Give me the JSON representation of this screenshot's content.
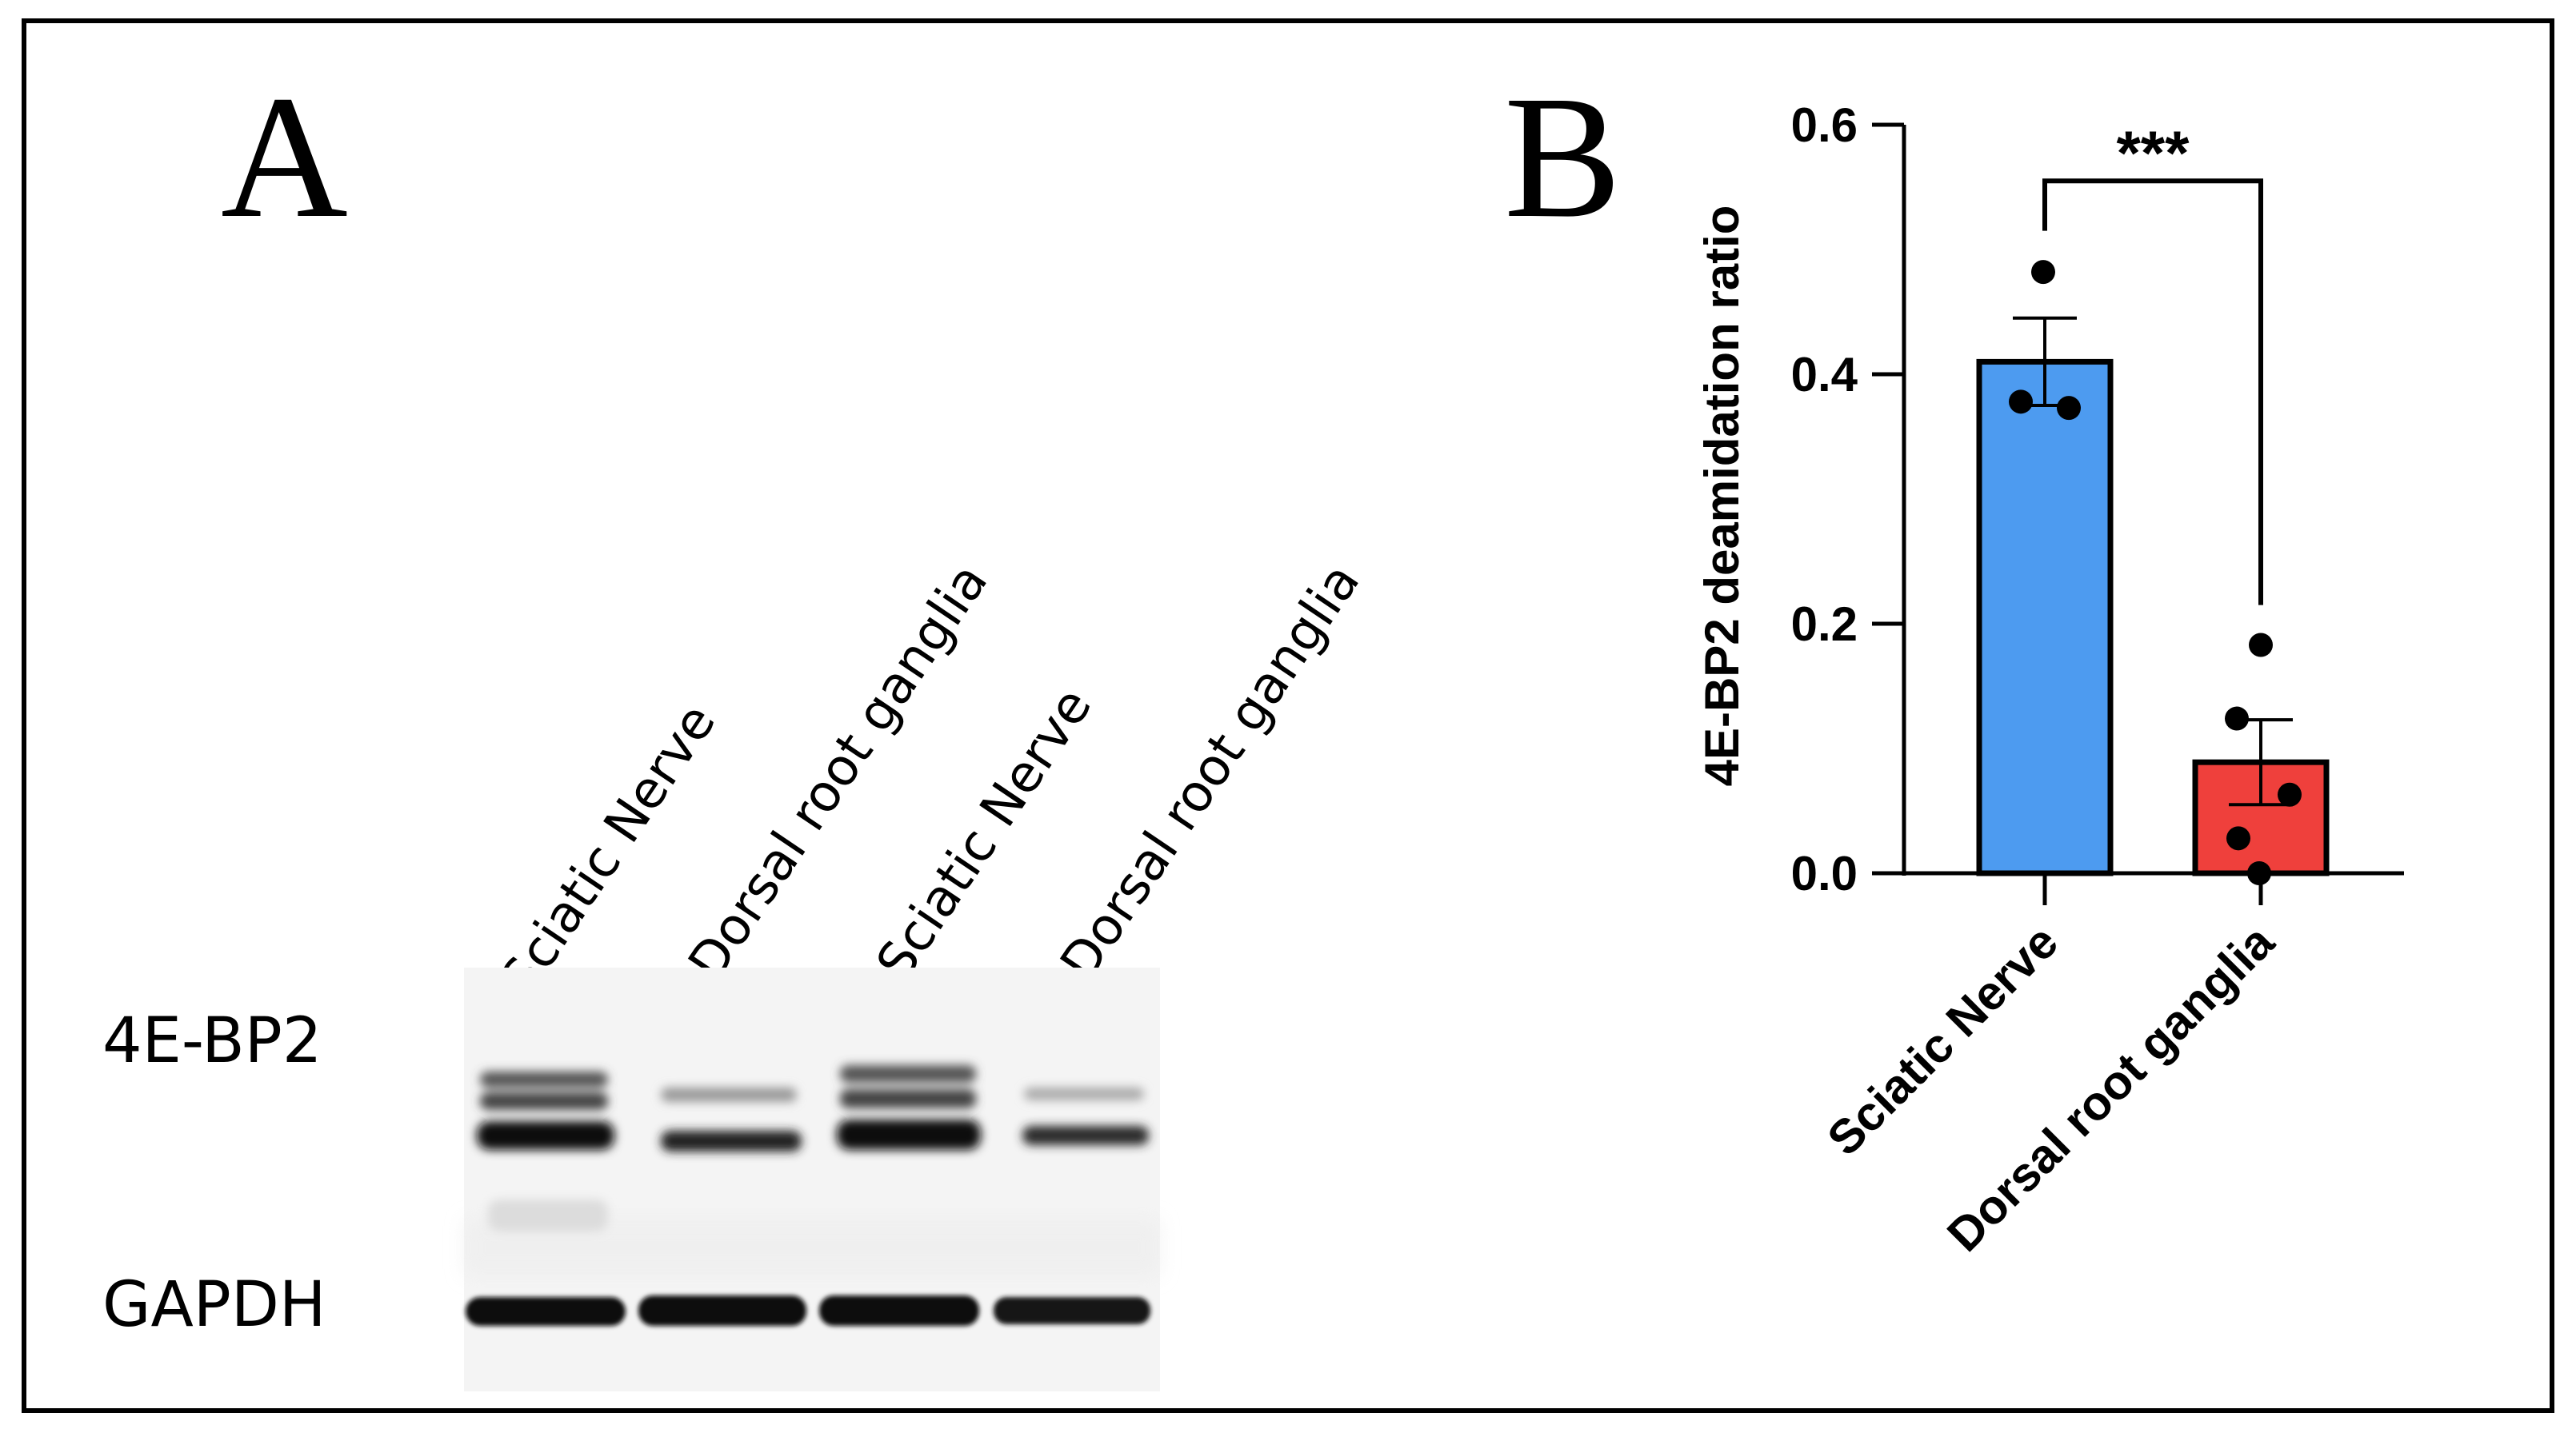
{
  "panel_a": {
    "letter": "A",
    "lanes": [
      "Sciatic Nerve",
      "Dorsal root ganglia",
      "Sciatic Nerve",
      "Dorsal root ganglia"
    ],
    "blots": [
      "4E-BP2",
      "GAPDH"
    ]
  },
  "chart_data": {
    "type": "bar",
    "panel_letter": "B",
    "categories": [
      "Sciatic Nerve",
      "Dorsal root ganglia"
    ],
    "values": [
      0.41,
      0.089
    ],
    "errors": [
      0.035,
      0.034
    ],
    "points": [
      [
        0.482,
        0.378,
        0.373
      ],
      [
        0.183,
        0.124,
        0.063,
        0.028,
        0.0
      ]
    ],
    "colors": [
      "#4d9bf0",
      "#ef403c"
    ],
    "xlabel": "",
    "ylabel": "4E-BP2 deamidation ratio",
    "ylim": [
      0,
      0.6
    ],
    "yticks": [
      "0.0",
      "0.2",
      "0.4",
      "0.6"
    ],
    "significance": "***",
    "grid": false,
    "legend": "none"
  }
}
